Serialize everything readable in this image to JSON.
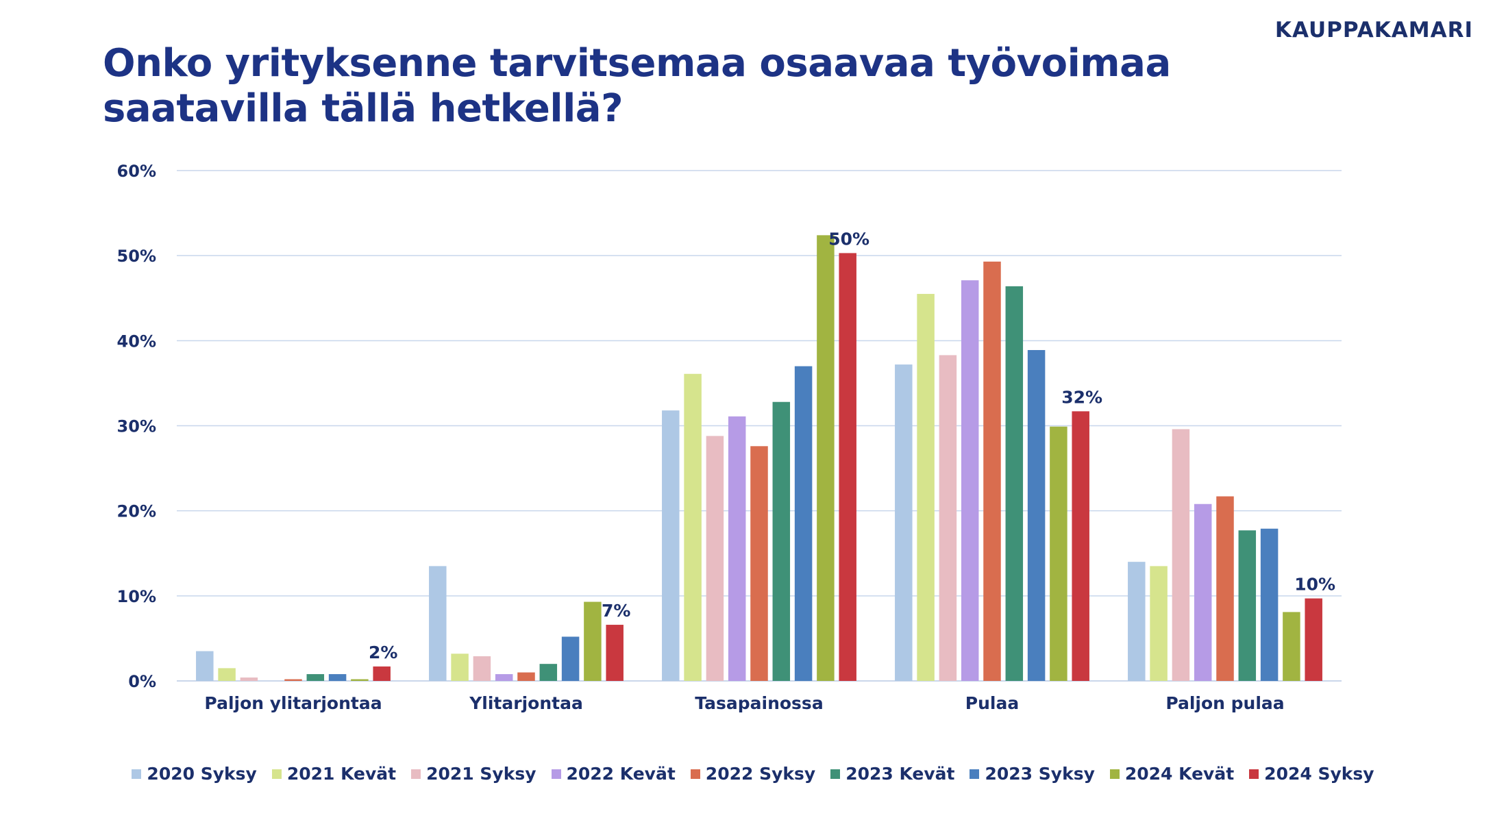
{
  "brand": "KAUPPAKAMARI",
  "title": "Onko yrityksenne tarvitsemaa osaavaa työvoimaa saatavilla tällä hetkellä?",
  "chart_data": {
    "type": "bar",
    "title": "Onko yrityksenne tarvitsemaa osaavaa työvoimaa saatavilla tällä hetkellä?",
    "xlabel": "",
    "ylabel": "",
    "ylim": [
      0,
      60
    ],
    "yticks": [
      0,
      10,
      20,
      30,
      40,
      50,
      60
    ],
    "ytick_labels": [
      "0%",
      "10%",
      "20%",
      "30%",
      "40%",
      "50%",
      "60%"
    ],
    "grid": true,
    "legend_position": "bottom",
    "categories": [
      "Paljon ylitarjontaa",
      "Ylitarjontaa",
      "Tasapainossa",
      "Pulaa",
      "Paljon pulaa"
    ],
    "series": [
      {
        "name": "2020 Syksy",
        "color": "#aec8e5",
        "values": [
          3.5,
          13.5,
          31.8,
          37.2,
          14.0
        ]
      },
      {
        "name": "2021 Kevät",
        "color": "#d6e48d",
        "values": [
          1.5,
          3.2,
          36.1,
          45.5,
          13.5
        ]
      },
      {
        "name": "2021 Syksy",
        "color": "#e8bcc2",
        "values": [
          0.4,
          2.9,
          28.8,
          38.3,
          29.6
        ]
      },
      {
        "name": "2022 Kevät",
        "color": "#b69be6",
        "values": [
          0.0,
          0.8,
          31.1,
          47.1,
          20.8
        ]
      },
      {
        "name": "2022 Syksy",
        "color": "#d96d4f",
        "values": [
          0.2,
          1.0,
          27.6,
          49.3,
          21.7
        ]
      },
      {
        "name": "2023 Kevät",
        "color": "#3f9177",
        "values": [
          0.8,
          2.0,
          32.8,
          46.4,
          17.7
        ]
      },
      {
        "name": "2023 Syksy",
        "color": "#4a7fbe",
        "values": [
          0.8,
          5.2,
          37.0,
          38.9,
          17.9
        ]
      },
      {
        "name": "2024 Kevät",
        "color": "#a1b441",
        "values": [
          0.2,
          9.3,
          52.4,
          29.9,
          8.1
        ]
      },
      {
        "name": "2024 Syksy",
        "color": "#c9383f",
        "values": [
          1.7,
          6.6,
          50.3,
          31.7,
          9.7
        ]
      }
    ],
    "data_labels": [
      {
        "series": "2024 Syksy",
        "category": "Paljon ylitarjontaa",
        "text": "2%"
      },
      {
        "series": "2024 Syksy",
        "category": "Ylitarjontaa",
        "text": "7%"
      },
      {
        "series": "2024 Syksy",
        "category": "Tasapainossa",
        "text": "50%"
      },
      {
        "series": "2024 Syksy",
        "category": "Pulaa",
        "text": "32%"
      },
      {
        "series": "2024 Syksy",
        "category": "Paljon pulaa",
        "text": "10%"
      }
    ]
  }
}
